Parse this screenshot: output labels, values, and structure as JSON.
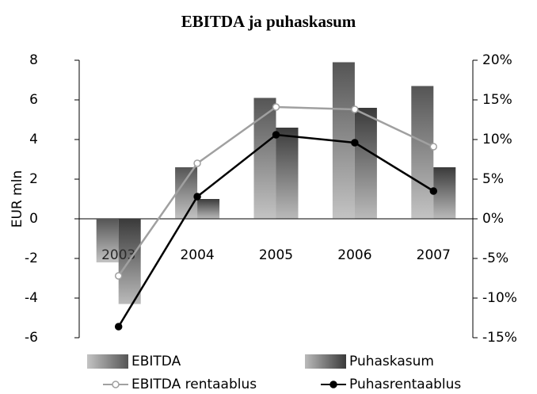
{
  "chart_data": {
    "type": "bar",
    "title": "EBITDA ja puhaskasum",
    "ylabel": "EUR mln",
    "categories": [
      "2003",
      "2004",
      "2005",
      "2006",
      "2007"
    ],
    "series": [
      {
        "name": "EBITDA",
        "color": "#555555",
        "values": [
          -2.2,
          2.6,
          6.1,
          7.9,
          6.7
        ]
      },
      {
        "name": "Puhaskasum",
        "color": "#3a3a3a",
        "values": [
          -4.3,
          1.0,
          4.6,
          5.6,
          2.6
        ]
      },
      {
        "name": "EBITDA rentaablus",
        "type": "line",
        "axis": "y2",
        "color": "#a0a0a0",
        "marker_fill": "#ffffff",
        "values": [
          -7.2,
          7.0,
          14.1,
          13.8,
          9.1
        ]
      },
      {
        "name": "Puhasrentaablus",
        "type": "line",
        "axis": "y2",
        "color": "#000000",
        "marker_fill": "#000000",
        "values": [
          -13.6,
          2.8,
          10.6,
          9.6,
          3.5
        ]
      }
    ],
    "ylim": [
      -6,
      8
    ],
    "yticks": [
      -6,
      -4,
      -2,
      0,
      2,
      4,
      6,
      8
    ],
    "y2lim": [
      -15,
      20
    ],
    "y2ticks": [
      {
        "value": -15,
        "label": "-15%"
      },
      {
        "value": -10,
        "label": "-10%"
      },
      {
        "value": -5,
        "label": "-5%"
      },
      {
        "value": 0,
        "label": "0%"
      },
      {
        "value": 5,
        "label": "5%"
      },
      {
        "value": 10,
        "label": "10%"
      },
      {
        "value": 15,
        "label": "15%"
      },
      {
        "value": 20,
        "label": "20%"
      }
    ]
  }
}
